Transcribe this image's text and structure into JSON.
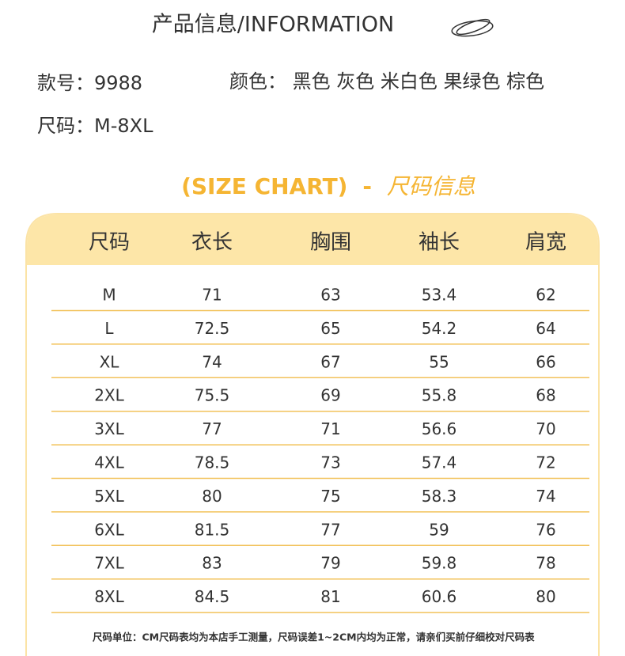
{
  "header": {
    "title": "产品信息/INFORMATION"
  },
  "info": {
    "model": "款号：9988",
    "colors": "颜色：  黑色 灰色 米白色  果绿色 棕色",
    "sizes": "尺码：M-8XL"
  },
  "size_chart": {
    "title_en": "(SIZE CHART)",
    "dash": "-",
    "title_cn": "尺码信息"
  },
  "table": {
    "headers": [
      "尺码",
      "衣长",
      "胸围",
      "袖长",
      "肩宽"
    ],
    "rows": [
      [
        "M",
        "71",
        "63",
        "53.4",
        "62"
      ],
      [
        "L",
        "72.5",
        "65",
        "54.2",
        "64"
      ],
      [
        "XL",
        "74",
        "67",
        "55",
        "66"
      ],
      [
        "2XL",
        "75.5",
        "69",
        "55.8",
        "68"
      ],
      [
        "3XL",
        "77",
        "71",
        "56.6",
        "70"
      ],
      [
        "4XL",
        "78.5",
        "73",
        "57.4",
        "72"
      ],
      [
        "5XL",
        "80",
        "75",
        "58.3",
        "74"
      ],
      [
        "6XL",
        "81.5",
        "77",
        "59",
        "76"
      ],
      [
        "7XL",
        "83",
        "79",
        "59.8",
        "78"
      ],
      [
        "8XL",
        "84.5",
        "81",
        "60.6",
        "80"
      ]
    ]
  },
  "footnote": "尺码单位：CM尺码表均为本店手工测量，尺码误差1~2CM内均为正常，请亲们买前仔细校对尺码表"
}
